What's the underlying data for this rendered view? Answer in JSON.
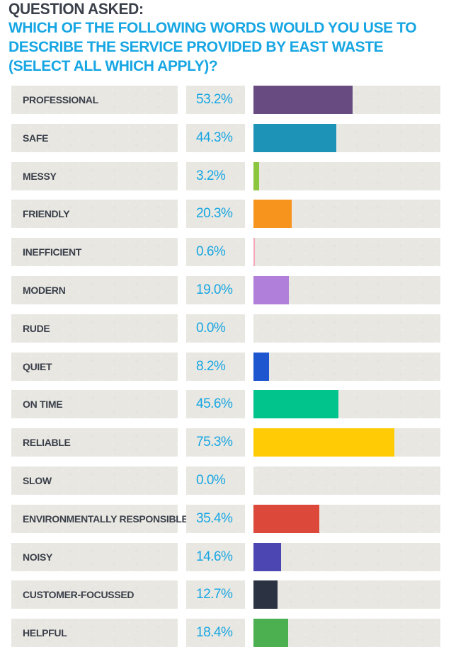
{
  "header": {
    "label": "QUESTION ASKED:",
    "question": "WHICH OF THE FOLLOWING WORDS WOULD YOU USE TO DESCRIBE THE SERVICE PROVIDED BY EAST WASTE (SELECT ALL WHICH APPLY)?"
  },
  "chart_data": {
    "type": "bar",
    "orientation": "horizontal",
    "categories": [
      "PROFESSIONAL",
      "SAFE",
      "MESSY",
      "FRIENDLY",
      "INEFFICIENT",
      "MODERN",
      "RUDE",
      "QUIET",
      "ON TIME",
      "RELIABLE",
      "SLOW",
      "ENVIRONMENTALLY RESPONSIBLE",
      "NOISY",
      "CUSTOMER-FOCUSSED",
      "HELPFUL"
    ],
    "values": [
      53.2,
      44.3,
      3.2,
      20.3,
      0.6,
      19.0,
      0.0,
      8.2,
      45.6,
      75.3,
      0.0,
      35.4,
      14.6,
      12.7,
      18.4
    ],
    "value_labels": [
      "53.2%",
      "44.3%",
      "3.2%",
      "20.3%",
      "0.6%",
      "19.0%",
      "0.0%",
      "8.2%",
      "45.6%",
      "75.3%",
      "0.0%",
      "35.4%",
      "14.6%",
      "12.7%",
      "18.4%"
    ],
    "colors": [
      "#684b80",
      "#1e93b8",
      "#8cc63f",
      "#f7941d",
      "#f4a7b9",
      "#b07fd9",
      "#bdbdbd",
      "#1e56d0",
      "#00c48c",
      "#ffcb05",
      "#bdbdbd",
      "#dc483a",
      "#4b46b2",
      "#2b3342",
      "#4caf50"
    ],
    "xlim": [
      0,
      100
    ],
    "grid": false,
    "legend": "none"
  }
}
